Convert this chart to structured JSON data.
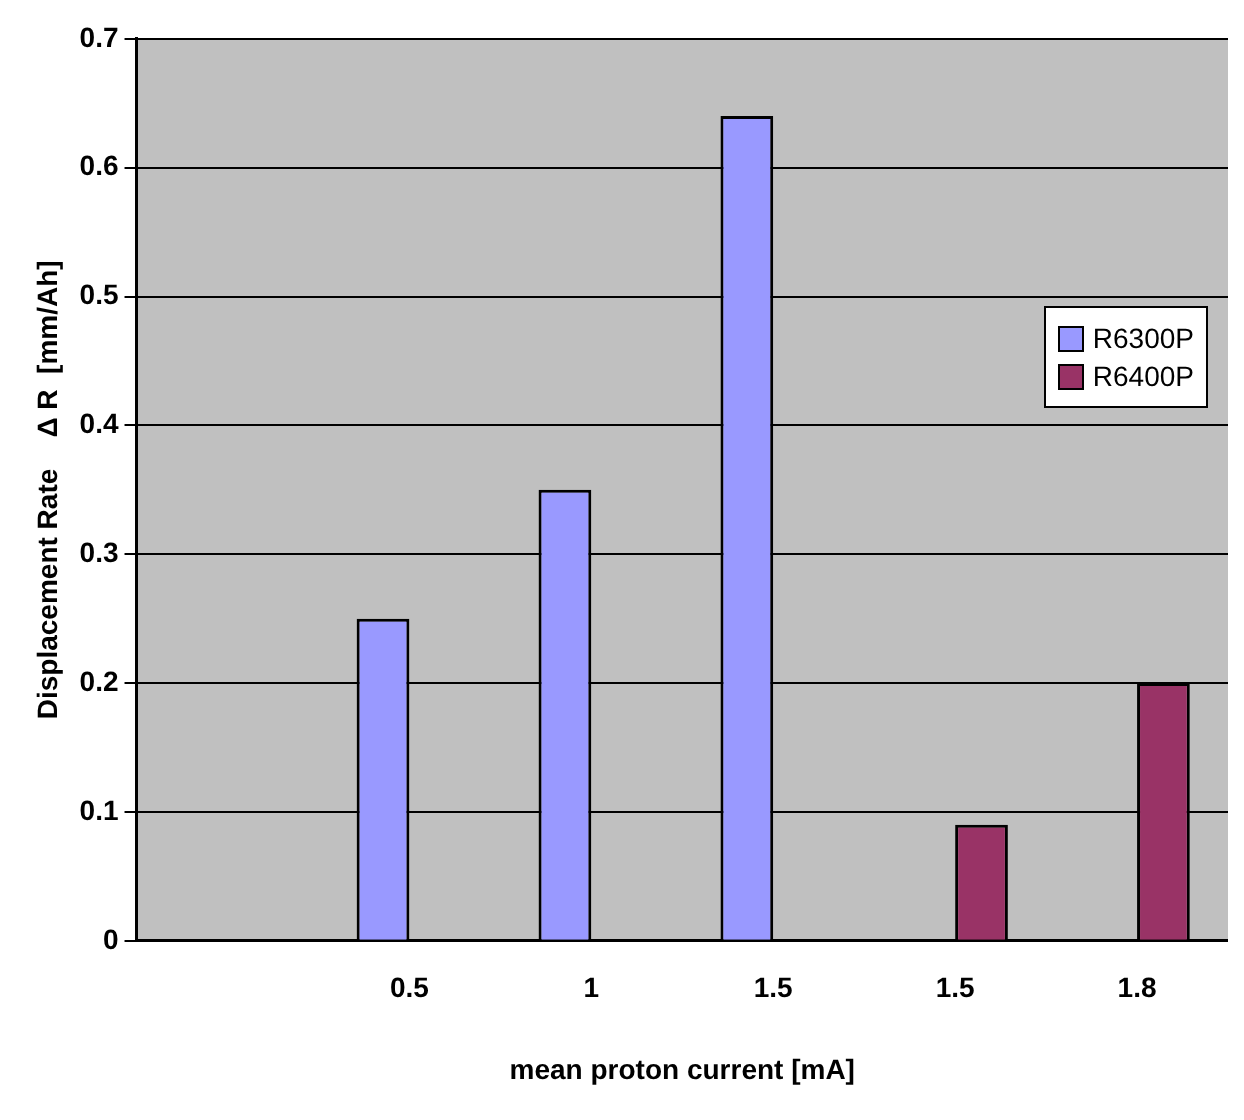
{
  "chart_data": {
    "type": "bar",
    "xlabel": "mean proton current [mA]",
    "ylabel": "Displacement Rate    Δ R  [mm/Ah]",
    "categories": [
      null,
      "0.5",
      "1",
      "1.5",
      "1.5",
      "1.8"
    ],
    "series": [
      {
        "name": "R6300P",
        "color": "#9999ff",
        "values": [
          null,
          0.25,
          0.35,
          0.64,
          null,
          null
        ]
      },
      {
        "name": "R6400P",
        "color": "#993366",
        "values": [
          null,
          null,
          null,
          null,
          0.09,
          0.2
        ]
      }
    ],
    "ylim": [
      0,
      0.7
    ],
    "yticks": [
      0,
      0.1,
      0.2,
      0.3,
      0.4,
      0.5,
      0.6,
      0.7
    ],
    "grid": "y",
    "legend": "right"
  }
}
